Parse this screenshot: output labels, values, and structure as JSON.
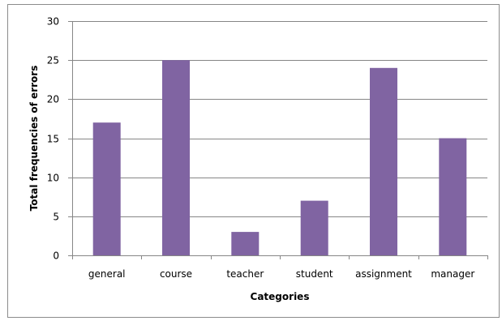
{
  "chart_data": {
    "type": "bar",
    "title": "",
    "xlabel": "Categories",
    "ylabel": "Total frequencies of errors",
    "categories": [
      "general",
      "course",
      "teacher",
      "student",
      "assignment",
      "manager"
    ],
    "values": [
      17,
      25,
      3,
      7,
      24,
      15
    ],
    "ylim": [
      0,
      30
    ],
    "yticks": [
      0,
      5,
      10,
      15,
      20,
      25,
      30
    ],
    "grid": true,
    "legend": "none",
    "colors": {
      "bar": "#8064A2",
      "grid": "#868686",
      "axis": "#868686"
    }
  }
}
